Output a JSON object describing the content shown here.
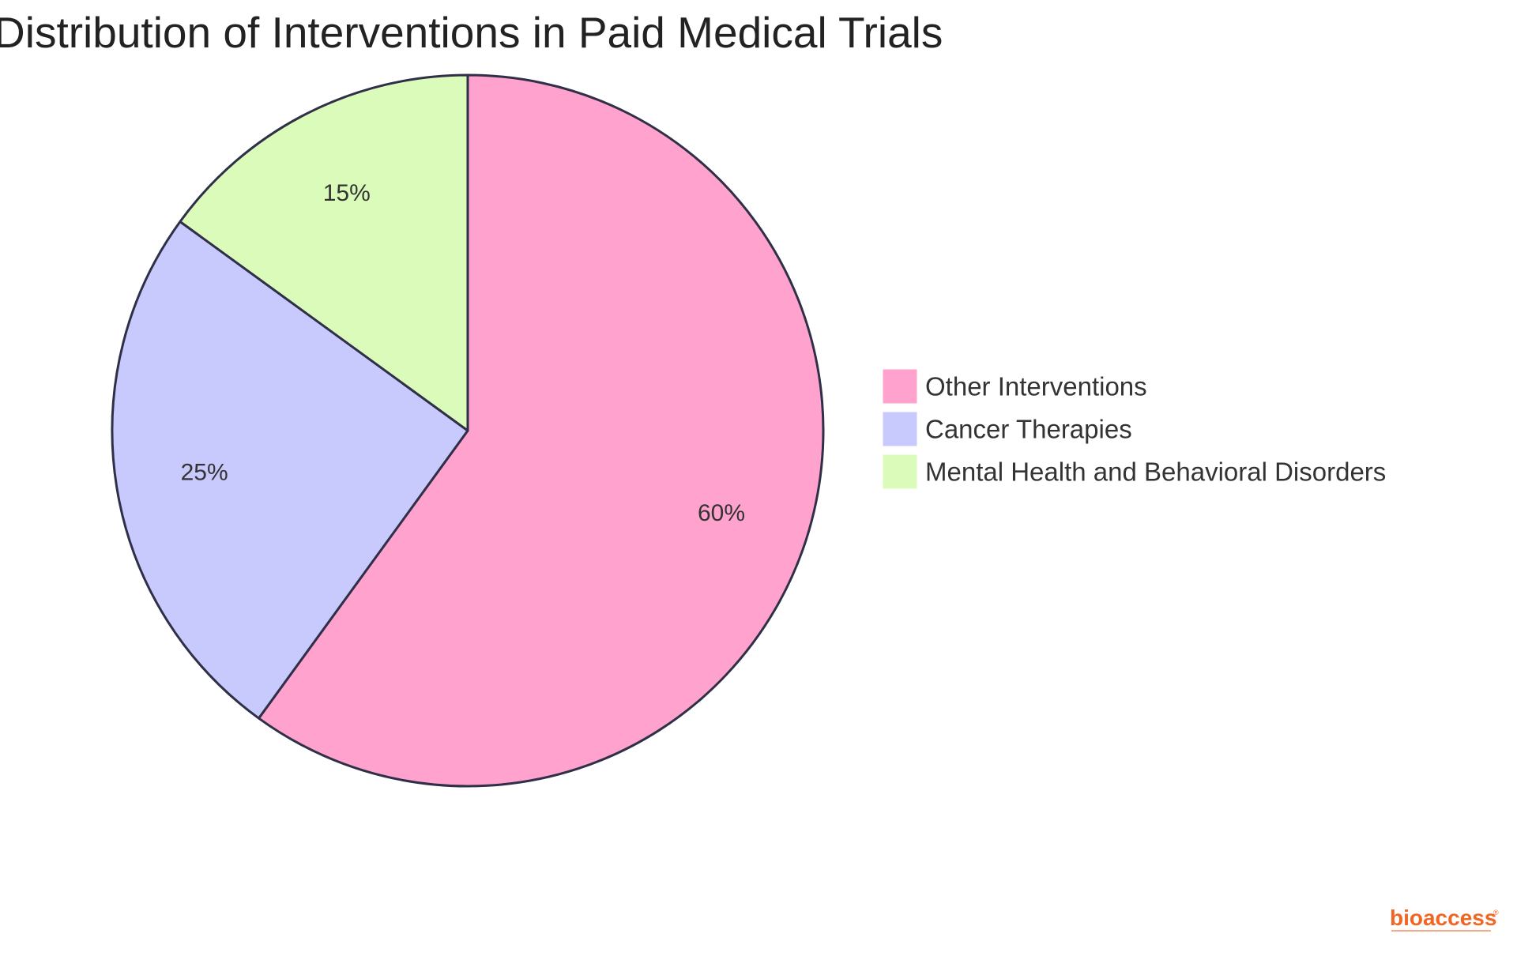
{
  "chart_data": {
    "type": "pie",
    "title": "Distribution of Interventions in Paid Medical Trials",
    "slices": [
      {
        "label": "Other Interventions",
        "value": 60,
        "display": "60%",
        "color": "#ffa3ce"
      },
      {
        "label": "Cancer Therapies",
        "value": 25,
        "display": "25%",
        "color": "#c8c9fd"
      },
      {
        "label": "Mental Health and Behavioral Disorders",
        "value": 15,
        "display": "15%",
        "color": "#dbfbbb"
      }
    ],
    "legend_position": "right",
    "start_angle_deg": 0,
    "direction": "clockwise"
  },
  "branding": {
    "logo_text": "bioaccess",
    "logo_mark": "®",
    "logo_color": "#f26522"
  },
  "colors": {
    "outline": "#2f2f48",
    "background": "#ffffff"
  }
}
